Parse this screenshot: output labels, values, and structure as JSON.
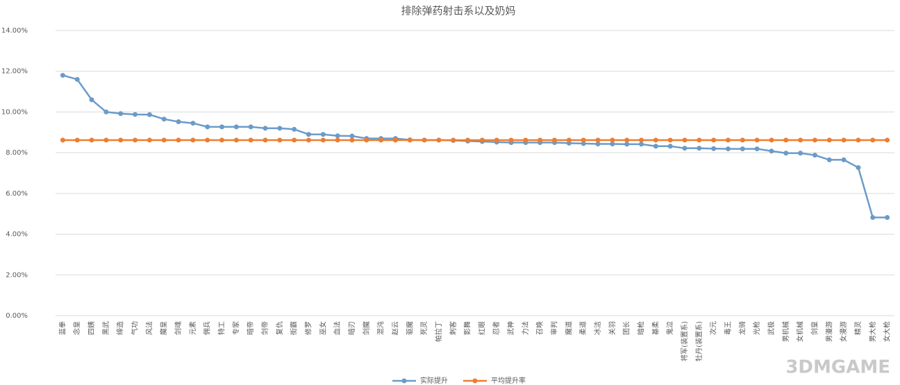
{
  "chart_data": {
    "type": "line",
    "title": "排除弹药射击系以及奶妈",
    "categories": [
      "蓝拳",
      "念皇",
      "四姨",
      "黑武",
      "缔造",
      "气功",
      "风法",
      "魔皇",
      "剑魂",
      "元素",
      "佣兵",
      "特工",
      "专家",
      "暗帝",
      "剑帝",
      "复仇",
      "街霸",
      "修罗",
      "巫女",
      "血法",
      "暗刃",
      "剑魔",
      "混沌",
      "赵云",
      "驱魔",
      "死灵",
      "帕拉丁",
      "刺客",
      "影舞",
      "红眼",
      "忍者",
      "武神",
      "力法",
      "召唤",
      "审判",
      "魔道",
      "柔道",
      "冰洁",
      "关羽",
      "团长",
      "暗枪",
      "基柔",
      "鬼泣",
      "将军(装置系)",
      "牡丹(装置系)",
      "次元",
      "毒王",
      "龙骑",
      "光枪",
      "武极",
      "男机械",
      "女机械",
      "剑皇",
      "男漫游",
      "女漫游",
      "精灵",
      "男大枪",
      "女大枪"
    ],
    "series": [
      {
        "name": "实际提升",
        "color": "#6b9bc8",
        "values": [
          11.8,
          11.6,
          10.6,
          10.0,
          9.92,
          9.88,
          9.87,
          9.65,
          9.52,
          9.45,
          9.27,
          9.27,
          9.27,
          9.27,
          9.2,
          9.2,
          9.15,
          8.9,
          8.9,
          8.83,
          8.82,
          8.7,
          8.7,
          8.7,
          8.63,
          8.62,
          8.62,
          8.6,
          8.57,
          8.55,
          8.52,
          8.5,
          8.5,
          8.5,
          8.5,
          8.47,
          8.45,
          8.43,
          8.43,
          8.42,
          8.42,
          8.32,
          8.32,
          8.22,
          8.22,
          8.2,
          8.19,
          8.19,
          8.19,
          8.08,
          7.98,
          7.98,
          7.88,
          7.65,
          7.65,
          7.27,
          4.82,
          4.82
        ]
      },
      {
        "name": "平均提升率",
        "color": "#ed7d31",
        "values": [
          8.62,
          8.62,
          8.62,
          8.62,
          8.62,
          8.62,
          8.62,
          8.62,
          8.62,
          8.62,
          8.62,
          8.62,
          8.62,
          8.62,
          8.62,
          8.62,
          8.62,
          8.62,
          8.62,
          8.62,
          8.62,
          8.62,
          8.62,
          8.62,
          8.62,
          8.62,
          8.62,
          8.62,
          8.62,
          8.62,
          8.62,
          8.62,
          8.62,
          8.62,
          8.62,
          8.62,
          8.62,
          8.62,
          8.62,
          8.62,
          8.62,
          8.62,
          8.62,
          8.62,
          8.62,
          8.62,
          8.62,
          8.62,
          8.62,
          8.62,
          8.62,
          8.62,
          8.62,
          8.62,
          8.62,
          8.62,
          8.62,
          8.62
        ]
      }
    ],
    "ylim": [
      0,
      14
    ],
    "yticks": [
      {
        "value": 0,
        "label": "0.00%"
      },
      {
        "value": 2,
        "label": "2.00%"
      },
      {
        "value": 4,
        "label": "4.00%"
      },
      {
        "value": 6,
        "label": "6.00%"
      },
      {
        "value": 8,
        "label": "8.00%"
      },
      {
        "value": 10,
        "label": "10.00%"
      },
      {
        "value": 12,
        "label": "12.00%"
      },
      {
        "value": 14,
        "label": "14.00%"
      }
    ],
    "grid": true,
    "legend": "bottom",
    "watermark": "3DMGAME"
  }
}
